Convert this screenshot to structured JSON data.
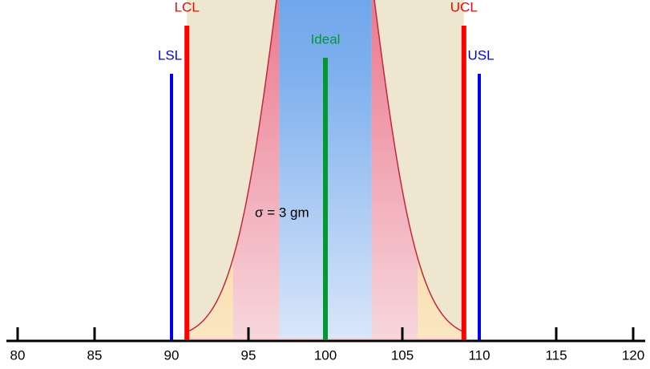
{
  "chart_data": {
    "type": "normal",
    "annotation": "σ = 3 gm",
    "sigma": 3,
    "xlim": [
      80,
      120
    ],
    "xticks": [
      80,
      85,
      90,
      95,
      100,
      105,
      110,
      115,
      120
    ],
    "lines": [
      {
        "name": "LSL",
        "value": 90,
        "color": "#0000ee"
      },
      {
        "name": "LCL",
        "value": 91,
        "color": "#ff0000"
      },
      {
        "name": "Ideal",
        "value": 100,
        "color": "#009a2e"
      },
      {
        "name": "UCL",
        "value": 109,
        "color": "#ff0000"
      },
      {
        "name": "USL",
        "value": 110,
        "color": "#0000ee"
      }
    ]
  }
}
